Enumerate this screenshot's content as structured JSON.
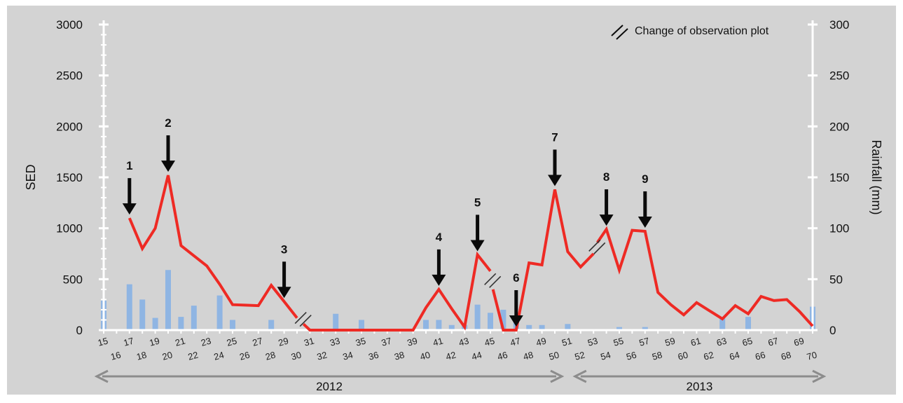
{
  "chart_data": {
    "type": "line",
    "title": "",
    "ylabel": "SED",
    "y2label": "Rainfall (mm)",
    "ylim": [
      0,
      3000
    ],
    "y2lim": [
      0,
      300
    ],
    "yticks": [
      "0",
      "500",
      "1000",
      "1500",
      "2000",
      "2500",
      "3000"
    ],
    "y2ticks": [
      "0",
      "50",
      "100",
      "150",
      "200",
      "250",
      "300"
    ],
    "x": [
      15,
      16,
      17,
      18,
      19,
      20,
      21,
      22,
      23,
      24,
      25,
      26,
      27,
      28,
      29,
      30,
      31,
      32,
      33,
      34,
      35,
      36,
      37,
      38,
      39,
      40,
      41,
      42,
      43,
      44,
      45,
      46,
      47,
      48,
      49,
      50,
      51,
      52,
      53,
      54,
      55,
      56,
      57,
      58,
      59,
      60,
      61,
      62,
      63,
      64,
      65,
      66,
      67,
      68,
      69,
      70
    ],
    "xtick_labels": [
      "15",
      "16",
      "17",
      "18",
      "19",
      "20",
      "21",
      "22",
      "23",
      "24",
      "25",
      "26",
      "27",
      "28",
      "29",
      "30",
      "31",
      "32",
      "33",
      "34",
      "35",
      "36",
      "37",
      "38",
      "39",
      "40",
      "41",
      "42",
      "43",
      "44",
      "45",
      "46",
      "47",
      "48",
      "49",
      "50",
      "51",
      "52",
      "53",
      "54",
      "55",
      "56",
      "57",
      "58",
      "59",
      "60",
      "61",
      "62",
      "63",
      "64",
      "65",
      "66",
      "67",
      "68",
      "69",
      "70"
    ],
    "series": [
      {
        "type": "line",
        "axis": "left",
        "color": "#ee2a24",
        "segments": [
          {
            "x": [
              17,
              18,
              19,
              20,
              21,
              22,
              23,
              24,
              25,
              26,
              27,
              28,
              29,
              30
            ],
            "y": [
              1100,
              800,
              1000,
              1520,
              830,
              730,
              630,
              450,
              250,
              245,
              240,
              440,
              280,
              120
            ]
          },
          {
            "x": [
              30.5,
              31,
              32,
              33,
              34,
              35,
              36,
              37,
              38,
              39,
              40,
              41,
              42,
              43,
              44,
              45
            ],
            "y": [
              60,
              0,
              0,
              0,
              0,
              0,
              0,
              0,
              0,
              0,
              220,
              400,
              210,
              30,
              740,
              580
            ]
          },
          {
            "x": [
              45.2,
              46,
              47,
              48,
              49,
              50,
              51,
              52,
              53
            ],
            "y": [
              400,
              0,
              0,
              660,
              640,
              1380,
              770,
              620,
              750
            ]
          },
          {
            "x": [
              53.3,
              54,
              55,
              56,
              57,
              58,
              59,
              60,
              61,
              62,
              63,
              64,
              65,
              66,
              67,
              68,
              69,
              70
            ],
            "y": [
              860,
              990,
              590,
              980,
              970,
              370,
              250,
              150,
              270,
              190,
              110,
              240,
              160,
              330,
              290,
              300,
              180,
              40
            ]
          }
        ]
      },
      {
        "type": "bar",
        "axis": "right",
        "color": "#8fb5e3",
        "x": [
          15,
          17,
          18,
          19,
          20,
          21,
          22,
          24,
          25,
          28,
          33,
          35,
          40,
          41,
          42,
          43,
          44,
          45,
          46,
          47,
          48,
          49,
          51,
          55,
          57,
          63,
          65,
          70
        ],
        "values": [
          29,
          45,
          30,
          12,
          59,
          13,
          24,
          34,
          10,
          10,
          16,
          10,
          10,
          10,
          5,
          5,
          25,
          17,
          20,
          10,
          5,
          5,
          6,
          3,
          3,
          12,
          13,
          23
        ]
      }
    ],
    "annotations": [
      {
        "label": "1",
        "x": 17
      },
      {
        "label": "2",
        "x": 20
      },
      {
        "label": "3",
        "x": 29
      },
      {
        "label": "4",
        "x": 41
      },
      {
        "label": "5",
        "x": 44
      },
      {
        "label": "6",
        "x": 47
      },
      {
        "label": "7",
        "x": 50
      },
      {
        "label": "8",
        "x": 54
      },
      {
        "label": "9",
        "x": 57
      }
    ],
    "break_marks": [
      {
        "x": 30.5,
        "y": 120
      },
      {
        "x": 45.2,
        "y": 500
      },
      {
        "x": 53.3,
        "y": 830
      }
    ],
    "legend": {
      "label": "Change of observation plot",
      "position": "top-right"
    },
    "year_ranges": [
      {
        "label": "2012",
        "from": 15,
        "to": 50
      },
      {
        "label": "2013",
        "from": 52,
        "to": 70
      }
    ],
    "grid": false,
    "colors": {
      "background": "#d3d3d3",
      "axis": "#ffffff",
      "line": "#ee2a24",
      "bar": "#8fb5e3",
      "arrow": "#0a0a0a",
      "year_arrow": "#8c8c8c"
    }
  }
}
